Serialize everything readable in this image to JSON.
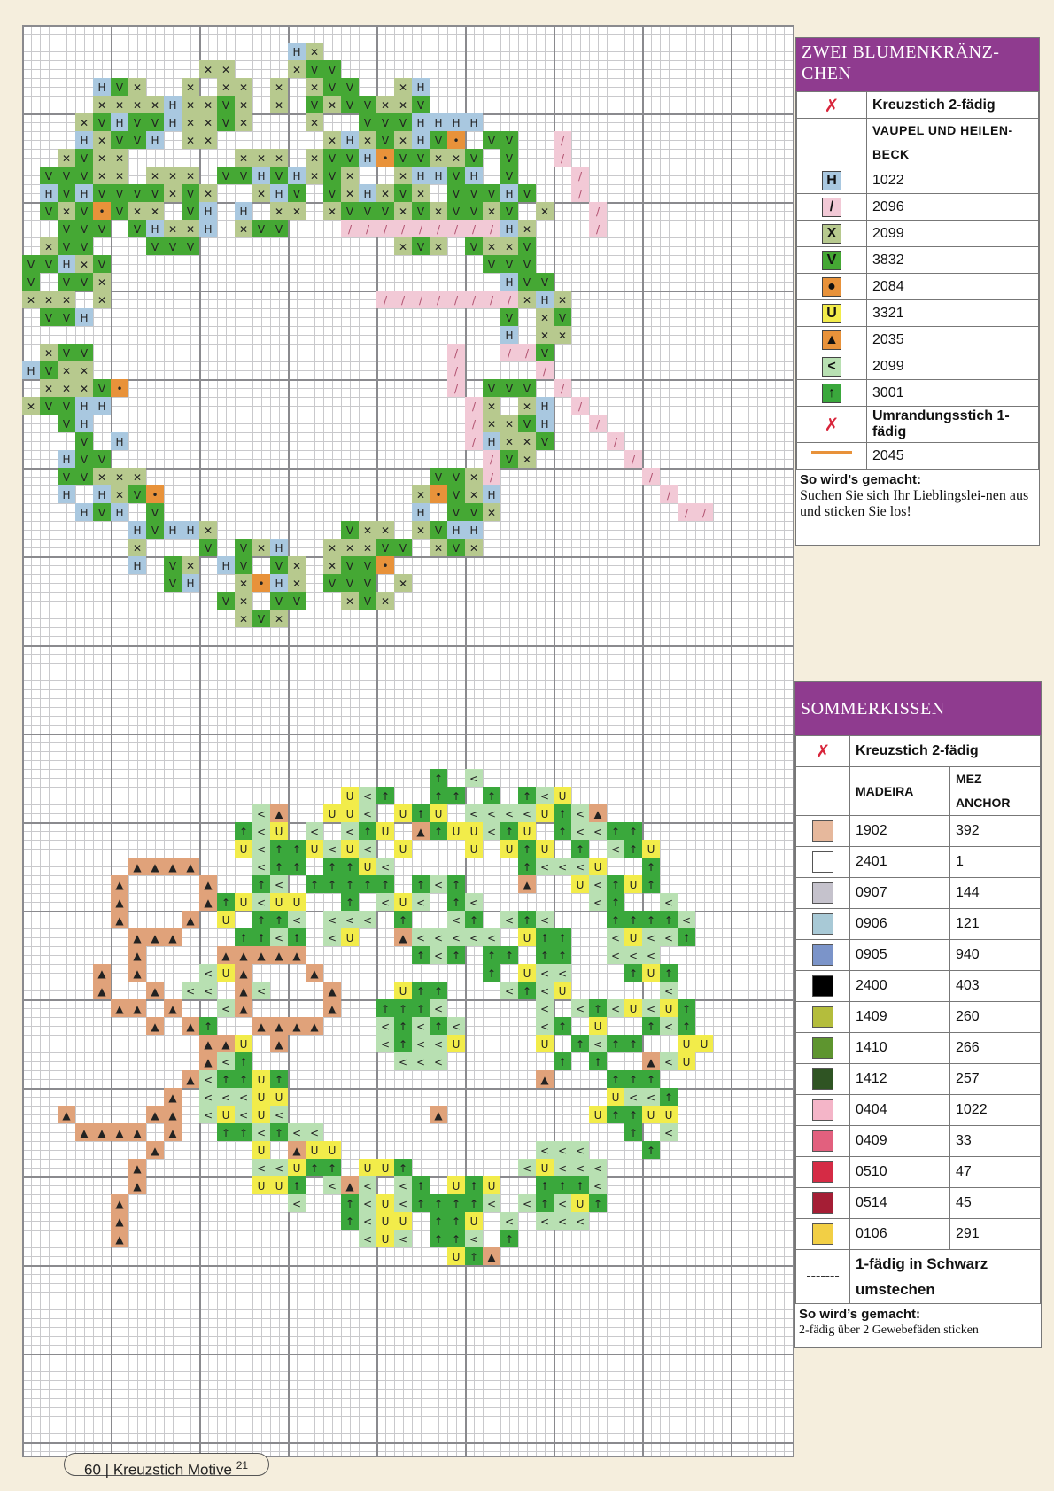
{
  "legend_top": {
    "title": "ZWEI BLUMENKRÄNZ-CHEN",
    "cross_label": "Kreuzstich 2-fädig",
    "brand_label": "VAUPEL UND HEILEN-BECK",
    "rows": [
      {
        "symbol": "H",
        "color": "#a9c8e0",
        "code": "1022"
      },
      {
        "symbol": "/",
        "color": "#f2c9d6",
        "code": "2096"
      },
      {
        "symbol": "X",
        "color": "#b7c98e",
        "code": "2099"
      },
      {
        "symbol": "V",
        "color": "#45a834",
        "code": "3832"
      },
      {
        "symbol": "●",
        "color": "#e8923a",
        "code": "2084"
      },
      {
        "symbol": "U",
        "color": "#f2ec4a",
        "code": "3321"
      },
      {
        "symbol": "▲",
        "color": "#e8923a",
        "code": "2035"
      },
      {
        "symbol": "<",
        "color": "#b8e0b2",
        "code": "2099"
      },
      {
        "symbol": "↑",
        "color": "#3aa83c",
        "code": "3001"
      }
    ],
    "outline_label": "Umrandungsstich 1-fädig",
    "outline_code": "2045",
    "foot_title": "So wird’s gemacht:",
    "foot_text": "Suchen Sie sich Ihr Lieblingslei-nen aus und sticken Sie los!"
  },
  "legend_bottom": {
    "title": "SOMMERKISSEN",
    "cross_label": "Kreuzstich 2-fädig",
    "col1": "MADEIRA",
    "col2": "MEZ ANCHOR",
    "rows": [
      {
        "color": "#e6b89c",
        "madeira": "1902",
        "anchor": "392"
      },
      {
        "color": "#ffffff",
        "madeira": "2401",
        "anchor": "1"
      },
      {
        "color": "#c5c2cc",
        "madeira": "0907",
        "anchor": "144"
      },
      {
        "color": "#a8c9d6",
        "madeira": "0906",
        "anchor": "121"
      },
      {
        "color": "#7b94c9",
        "madeira": "0905",
        "anchor": "940"
      },
      {
        "color": "#000000",
        "madeira": "2400",
        "anchor": "403"
      },
      {
        "color": "#b4bd3c",
        "madeira": "1409",
        "anchor": "260"
      },
      {
        "color": "#5e952f",
        "madeira": "1410",
        "anchor": "266"
      },
      {
        "color": "#2f5423",
        "madeira": "1412",
        "anchor": "257"
      },
      {
        "color": "#f4b5c8",
        "madeira": "0404",
        "anchor": "1022"
      },
      {
        "color": "#e2607e",
        "madeira": "0409",
        "anchor": "33"
      },
      {
        "color": "#d52b45",
        "madeira": "0510",
        "anchor": "47"
      },
      {
        "color": "#a51e35",
        "madeira": "0514",
        "anchor": "45"
      },
      {
        "color": "#f2cf45",
        "madeira": "0106",
        "anchor": "291"
      }
    ],
    "dash_symbol": "-------",
    "dash_label": "1-fädig in Schwarz umstechen",
    "foot_title": "So wird’s gemacht:",
    "foot_text": "2-fädig über 2 Gewebefäden sticken"
  },
  "footer": {
    "page_number": "60",
    "separator": "|",
    "magazine": "Kreuzstich Motive",
    "issue": "21"
  }
}
